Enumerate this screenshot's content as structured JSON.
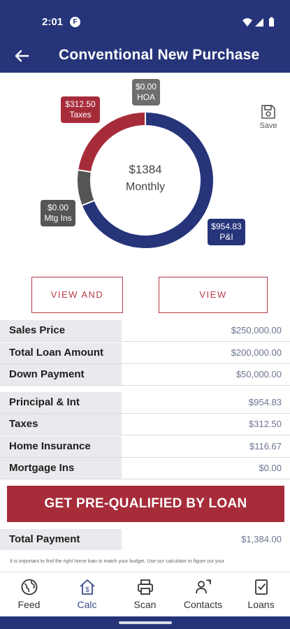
{
  "status": {
    "time": "2:01",
    "app_badge": "F"
  },
  "header": {
    "title": "Conventional New Purchase"
  },
  "chart_data": {
    "type": "pie",
    "center_value": "$1384",
    "center_label": "Monthly",
    "categories": [
      "P&I",
      "Taxes",
      "HOA",
      "Mtg Ins",
      "Home Insurance"
    ],
    "values": [
      954.83,
      312.5,
      0.0,
      0.0,
      116.67
    ],
    "labels": [
      {
        "value": "$954.83",
        "name": "P&I"
      },
      {
        "value": "$312.50",
        "name": "Taxes"
      },
      {
        "value": "$0.00",
        "name": "HOA"
      },
      {
        "value": "$0.00",
        "name": "Mtg Ins"
      }
    ],
    "colors": [
      "#26347a",
      "#a72c3a",
      "#6e6e6e",
      "#555555",
      "#555555"
    ]
  },
  "actions": {
    "save": "Save",
    "view_share": "VIEW AND SHARE",
    "view_amort": "VIEW AMORTIZATION"
  },
  "loan_rows": [
    {
      "label": "Sales Price",
      "value": "$250,000.00"
    },
    {
      "label": "Total Loan Amount",
      "value": "$200,000.00"
    },
    {
      "label": "Down Payment",
      "value": "$50,000.00"
    }
  ],
  "payment_rows": [
    {
      "label": "Principal & Int",
      "value": "$954.83"
    },
    {
      "label": "Taxes",
      "value": "$312.50"
    },
    {
      "label": "Home Insurance",
      "value": "$116.67"
    },
    {
      "label": "Mortgage Ins",
      "value": "$0.00"
    }
  ],
  "cta": "GET PRE-QUALIFIED BY LOAN",
  "total": {
    "label": "Total Payment",
    "value": "$1,384.00"
  },
  "note": "It is important to find the right home loan to match your budget. Use our calculator to figure out your",
  "nav": [
    {
      "label": "Feed",
      "icon": "globe-icon"
    },
    {
      "label": "Calc",
      "icon": "calculator-home-icon"
    },
    {
      "label": "Scan",
      "icon": "printer-icon"
    },
    {
      "label": "Contacts",
      "icon": "contacts-icon"
    },
    {
      "label": "Loans",
      "icon": "clipboard-check-icon"
    }
  ]
}
